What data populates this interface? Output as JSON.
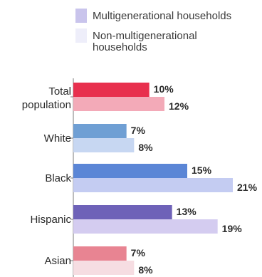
{
  "chart_data": {
    "type": "bar",
    "orientation": "horizontal",
    "categories": [
      [
        "Total",
        "population"
      ],
      [
        "White"
      ],
      [
        "Black"
      ],
      [
        "Hispanic"
      ],
      [
        "Asian"
      ]
    ],
    "series": [
      {
        "name": "Multigenerational households",
        "values": [
          10,
          7,
          15,
          13,
          7
        ],
        "labels": [
          "10%",
          "7%",
          "15%",
          "13%",
          "7%"
        ],
        "colors": [
          "#e8304e",
          "#6f9fd4",
          "#5b86d6",
          "#6e62b8",
          "#e88492"
        ]
      },
      {
        "name": "Non-multigenerational households",
        "name_lines": [
          "Non-multigenerational",
          "households"
        ],
        "values": [
          12,
          8,
          21,
          19,
          8
        ],
        "labels": [
          "12%",
          "8%",
          "21%",
          "19%",
          "8%"
        ],
        "colors": [
          "#f3aab8",
          "#c7d7f2",
          "#c4ccf2",
          "#d4ccf0",
          "#f6dde2"
        ]
      }
    ],
    "legend": {
      "placement": "top",
      "swatch_colors": [
        "#c9c4ec",
        "#eeeefa"
      ]
    },
    "xlim": [
      0,
      21
    ],
    "title": "",
    "xlabel": "",
    "ylabel": ""
  }
}
